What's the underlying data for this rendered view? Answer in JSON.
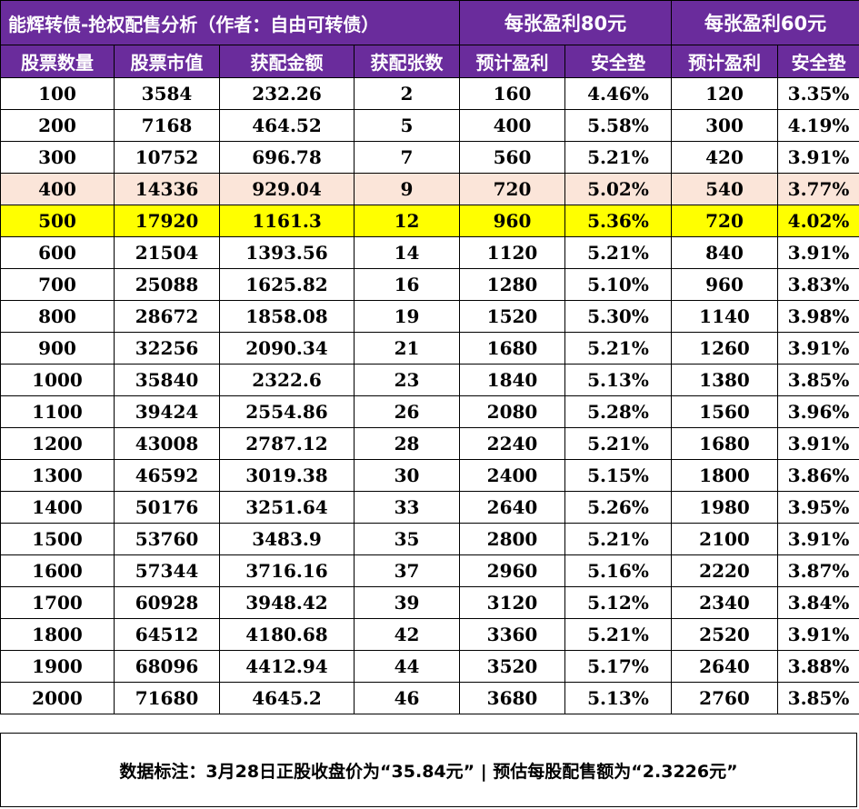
{
  "title": "能辉转债-抢权配售分析（作者：自由可转债）",
  "groups": [
    "每张盈利80元",
    "每张盈利60元"
  ],
  "headers": [
    "股票数量",
    "股票市值",
    "获配金额",
    "获配张数",
    "预计盈利",
    "安全垫",
    "预计盈利",
    "安全垫"
  ],
  "rows": [
    [
      "100",
      "3584",
      "232.26",
      "2",
      "160",
      "4.46%",
      "120",
      "3.35%"
    ],
    [
      "200",
      "7168",
      "464.52",
      "5",
      "400",
      "5.58%",
      "300",
      "4.19%"
    ],
    [
      "300",
      "10752",
      "696.78",
      "7",
      "560",
      "5.21%",
      "420",
      "3.91%"
    ],
    [
      "400",
      "14336",
      "929.04",
      "9",
      "720",
      "5.02%",
      "540",
      "3.77%"
    ],
    [
      "500",
      "17920",
      "1161.3",
      "12",
      "960",
      "5.36%",
      "720",
      "4.02%"
    ],
    [
      "600",
      "21504",
      "1393.56",
      "14",
      "1120",
      "5.21%",
      "840",
      "3.91%"
    ],
    [
      "700",
      "25088",
      "1625.82",
      "16",
      "1280",
      "5.10%",
      "960",
      "3.83%"
    ],
    [
      "800",
      "28672",
      "1858.08",
      "19",
      "1520",
      "5.30%",
      "1140",
      "3.98%"
    ],
    [
      "900",
      "32256",
      "2090.34",
      "21",
      "1680",
      "5.21%",
      "1260",
      "3.91%"
    ],
    [
      "1000",
      "35840",
      "2322.6",
      "23",
      "1840",
      "5.13%",
      "1380",
      "3.85%"
    ],
    [
      "1100",
      "39424",
      "2554.86",
      "26",
      "2080",
      "5.28%",
      "1560",
      "3.96%"
    ],
    [
      "1200",
      "43008",
      "2787.12",
      "28",
      "2240",
      "5.21%",
      "1680",
      "3.91%"
    ],
    [
      "1300",
      "46592",
      "3019.38",
      "30",
      "2400",
      "5.15%",
      "1800",
      "3.86%"
    ],
    [
      "1400",
      "50176",
      "3251.64",
      "33",
      "2640",
      "5.26%",
      "1980",
      "3.95%"
    ],
    [
      "1500",
      "53760",
      "3483.9",
      "35",
      "2800",
      "5.21%",
      "2100",
      "3.91%"
    ],
    [
      "1600",
      "57344",
      "3716.16",
      "37",
      "2960",
      "5.16%",
      "2220",
      "3.87%"
    ],
    [
      "1700",
      "60928",
      "3948.42",
      "39",
      "3120",
      "5.12%",
      "2340",
      "3.84%"
    ],
    [
      "1800",
      "64512",
      "4180.68",
      "42",
      "3360",
      "5.21%",
      "2520",
      "3.91%"
    ],
    [
      "1900",
      "68096",
      "4412.94",
      "44",
      "3520",
      "5.17%",
      "2640",
      "3.88%"
    ],
    [
      "2000",
      "71680",
      "4645.2",
      "46",
      "3680",
      "5.13%",
      "2760",
      "3.85%"
    ]
  ],
  "highlights": {
    "3": "peach",
    "4": "yellow"
  },
  "colors": {
    "header_bg": "#6a2c9c",
    "peach": "#fbe5d9",
    "yellow": "#ffff00"
  },
  "footnote": "数据标注：3月28日正股收盘价为“35.84元” | 预估每股配售额为“2.3226元”"
}
